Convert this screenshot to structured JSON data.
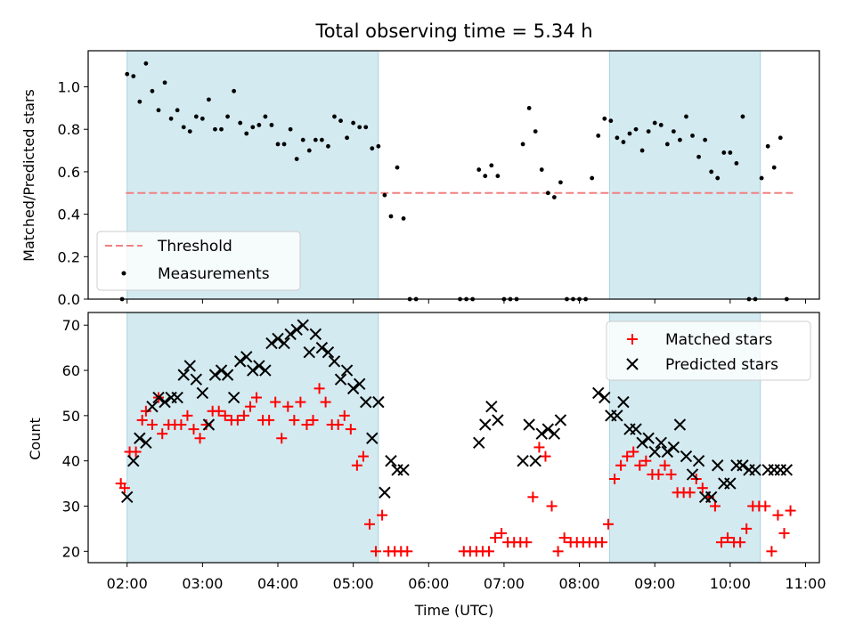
{
  "title": "Total observing time = 5.34 h",
  "colors": {
    "shade": "#d3eaf0",
    "threshold": "#f08080",
    "measurement": "#000000",
    "matched": "#ff0000",
    "predicted": "#000000"
  },
  "chart_data": [
    {
      "type": "scatter",
      "title": "Total observing time = 5.34 h",
      "xlabel": "",
      "ylabel": "Matched/Predicted stars",
      "xlim": [
        "01:29",
        "11:11"
      ],
      "ylim": [
        0,
        1.17
      ],
      "yticks": [
        0.0,
        0.2,
        0.4,
        0.6,
        0.8,
        1.0
      ],
      "ytick_labels": [
        "0.0",
        "0.2",
        "0.4",
        "0.6",
        "0.8",
        "1.0"
      ],
      "shaded_spans": [
        [
          "02:00",
          "05:20"
        ],
        [
          "08:24",
          "10:24"
        ]
      ],
      "legend_loc": "lower left",
      "threshold": {
        "name": "Threshold",
        "y": 0.5,
        "x": [
          "01:59",
          "10:50"
        ]
      },
      "series": [
        {
          "name": "Measurements",
          "x": [
            "01:56",
            "02:00",
            "02:05",
            "02:10",
            "02:15",
            "02:20",
            "02:25",
            "02:30",
            "02:35",
            "02:40",
            "02:45",
            "02:50",
            "02:55",
            "03:00",
            "03:05",
            "03:10",
            "03:15",
            "03:20",
            "03:25",
            "03:30",
            "03:35",
            "03:40",
            "03:45",
            "03:50",
            "03:55",
            "04:00",
            "04:05",
            "04:10",
            "04:15",
            "04:20",
            "04:25",
            "04:30",
            "04:35",
            "04:40",
            "04:45",
            "04:50",
            "04:55",
            "05:00",
            "05:05",
            "05:10",
            "05:15",
            "05:20",
            "05:25",
            "05:30",
            "05:35",
            "05:40",
            "05:45",
            "05:50",
            "06:25",
            "06:30",
            "06:35",
            "06:40",
            "06:45",
            "06:50",
            "06:55",
            "07:00",
            "07:05",
            "07:10",
            "07:15",
            "07:20",
            "07:25",
            "07:30",
            "07:35",
            "07:40",
            "07:45",
            "07:50",
            "07:55",
            "08:00",
            "08:05",
            "08:10",
            "08:15",
            "08:20",
            "08:25",
            "08:30",
            "08:35",
            "08:40",
            "08:45",
            "08:50",
            "08:55",
            "09:00",
            "09:05",
            "09:10",
            "09:15",
            "09:20",
            "09:25",
            "09:30",
            "09:35",
            "09:40",
            "09:45",
            "09:50",
            "09:55",
            "10:00",
            "10:05",
            "10:10",
            "10:15",
            "10:20",
            "10:25",
            "10:30",
            "10:35",
            "10:40",
            "10:45"
          ],
          "y": [
            0.0,
            1.06,
            1.05,
            0.93,
            1.11,
            0.98,
            0.89,
            1.02,
            0.85,
            0.89,
            0.81,
            0.79,
            0.86,
            0.85,
            0.94,
            0.8,
            0.8,
            0.86,
            0.98,
            0.83,
            0.78,
            0.81,
            0.82,
            0.86,
            0.82,
            0.73,
            0.73,
            0.8,
            0.66,
            0.75,
            0.7,
            0.75,
            0.75,
            0.72,
            0.86,
            0.84,
            0.76,
            0.83,
            0.81,
            0.81,
            0.71,
            0.72,
            0.49,
            0.39,
            0.62,
            0.38,
            0.0,
            0.0,
            0.0,
            0.0,
            0.0,
            0.61,
            0.58,
            0.63,
            0.58,
            0.0,
            0.0,
            0.0,
            0.73,
            0.9,
            0.79,
            0.61,
            0.5,
            0.48,
            0.55,
            0.0,
            0.0,
            0.0,
            0.0,
            0.57,
            0.77,
            0.85,
            0.84,
            0.76,
            0.74,
            0.78,
            0.8,
            0.7,
            0.79,
            0.83,
            0.82,
            0.73,
            0.79,
            0.75,
            0.86,
            0.77,
            0.67,
            0.75,
            0.6,
            0.57,
            0.69,
            0.69,
            0.64,
            0.86,
            0.0,
            0.0,
            0.57,
            0.72,
            0.62,
            0.76,
            0.0
          ]
        }
      ]
    },
    {
      "type": "scatter",
      "title": "",
      "xlabel": "Time (UTC)",
      "ylabel": "Count",
      "xlim": [
        "01:29",
        "11:11"
      ],
      "ylim": [
        17.5,
        72.8
      ],
      "xticks": [
        "02:00",
        "03:00",
        "04:00",
        "05:00",
        "06:00",
        "07:00",
        "08:00",
        "09:00",
        "10:00",
        "11:00"
      ],
      "yticks": [
        20,
        30,
        40,
        50,
        60,
        70
      ],
      "ytick_labels": [
        "20",
        "30",
        "40",
        "50",
        "60",
        "70"
      ],
      "shaded_spans": [
        [
          "02:00",
          "05:20"
        ],
        [
          "08:24",
          "10:24"
        ]
      ],
      "legend_loc": "upper right",
      "series": [
        {
          "name": "Matched stars",
          "x": [
            "01:55",
            "01:58",
            "02:02",
            "02:07",
            "02:12",
            "02:15",
            "02:20",
            "02:25",
            "02:28",
            "02:33",
            "02:38",
            "02:43",
            "02:48",
            "02:53",
            "02:58",
            "03:03",
            "03:08",
            "03:13",
            "03:18",
            "03:23",
            "03:28",
            "03:33",
            "03:38",
            "03:43",
            "03:48",
            "03:53",
            "03:58",
            "04:03",
            "04:08",
            "04:13",
            "04:18",
            "04:23",
            "04:28",
            "04:33",
            "04:38",
            "04:43",
            "04:48",
            "04:53",
            "04:58",
            "05:03",
            "05:08",
            "05:13",
            "05:18",
            "05:23",
            "05:28",
            "05:33",
            "05:38",
            "05:43",
            "06:28",
            "06:33",
            "06:38",
            "06:43",
            "06:48",
            "06:53",
            "06:58",
            "07:03",
            "07:08",
            "07:13",
            "07:18",
            "07:23",
            "07:28",
            "07:33",
            "07:38",
            "07:43",
            "07:48",
            "07:53",
            "07:58",
            "08:03",
            "08:08",
            "08:13",
            "08:18",
            "08:23",
            "08:28",
            "08:33",
            "08:38",
            "08:43",
            "08:48",
            "08:53",
            "08:58",
            "09:03",
            "09:08",
            "09:13",
            "09:18",
            "09:23",
            "09:28",
            "09:33",
            "09:38",
            "09:43",
            "09:48",
            "09:53",
            "09:58",
            "10:03",
            "10:08",
            "10:13",
            "10:18",
            "10:23",
            "10:28",
            "10:33",
            "10:38",
            "10:43"
          ],
          "y": [
            35,
            34,
            42,
            42,
            49,
            51,
            48,
            54,
            46,
            48,
            48,
            48,
            50,
            47,
            45,
            48,
            51,
            51,
            50,
            49,
            49,
            50,
            52,
            54,
            49,
            49,
            53,
            45,
            52,
            49,
            53,
            48,
            49,
            56,
            53,
            48,
            48,
            50,
            47,
            39,
            41,
            26,
            20,
            28,
            20,
            20,
            20,
            20,
            20,
            20,
            20,
            20,
            20,
            23,
            24,
            22,
            22,
            22,
            22,
            32,
            43,
            41,
            30,
            20,
            23,
            22,
            22,
            22,
            22,
            22,
            22,
            26,
            36,
            39,
            41,
            42,
            39,
            40,
            37,
            37,
            39,
            37,
            33,
            33,
            33,
            36,
            34,
            32,
            30,
            22,
            23,
            22,
            22,
            25,
            30,
            30,
            30,
            20,
            28,
            24
          ],
          "y2": [
            null,
            null,
            null,
            null,
            null,
            null,
            null,
            null,
            null,
            null,
            null,
            null,
            null,
            null,
            null,
            null,
            null,
            null,
            null,
            null,
            null,
            null,
            null,
            null,
            null,
            null,
            null,
            null,
            null,
            null,
            null,
            null,
            null,
            null,
            null,
            null,
            null,
            null,
            null,
            null,
            null,
            null,
            null,
            null,
            null,
            null,
            null,
            null,
            null,
            null,
            null,
            null,
            null,
            null,
            null,
            null,
            null,
            null,
            null,
            null,
            null,
            null,
            null,
            null,
            null,
            null,
            null,
            null,
            null,
            null,
            null,
            null,
            null,
            null,
            null,
            null,
            null,
            null,
            null,
            null,
            null,
            null,
            null,
            null,
            null,
            null,
            null,
            null,
            null,
            null,
            null,
            null,
            null,
            null,
            null,
            null,
            null,
            null,
            null,
            29
          ]
        },
        {
          "name": "Predicted stars",
          "x": [
            "02:00",
            "02:05",
            "02:10",
            "02:15",
            "02:20",
            "02:25",
            "02:30",
            "02:35",
            "02:40",
            "02:45",
            "02:50",
            "02:55",
            "03:00",
            "03:05",
            "03:10",
            "03:15",
            "03:20",
            "03:25",
            "03:30",
            "03:35",
            "03:40",
            "03:45",
            "03:50",
            "03:55",
            "04:00",
            "04:05",
            "04:10",
            "04:15",
            "04:20",
            "04:25",
            "04:30",
            "04:35",
            "04:40",
            "04:45",
            "04:50",
            "04:55",
            "05:00",
            "05:05",
            "05:10",
            "05:15",
            "05:20",
            "05:25",
            "05:30",
            "05:35",
            "05:40",
            "06:40",
            "06:45",
            "06:50",
            "06:55",
            "07:15",
            "07:20",
            "07:25",
            "07:30",
            "07:35",
            "07:40",
            "07:45",
            "08:15",
            "08:20",
            "08:25",
            "08:30",
            "08:35",
            "08:40",
            "08:45",
            "08:50",
            "08:55",
            "09:00",
            "09:05",
            "09:10",
            "09:15",
            "09:20",
            "09:25",
            "09:30",
            "09:35",
            "09:40",
            "09:45",
            "09:50",
            "09:55",
            "10:00",
            "10:05",
            "10:10",
            "10:15",
            "10:20",
            "10:30",
            "10:35",
            "10:40",
            "10:45"
          ],
          "y": [
            32,
            40,
            45,
            44,
            52,
            54,
            53,
            54,
            54,
            59,
            61,
            58,
            55,
            48,
            59,
            60,
            59,
            54,
            62,
            63,
            60,
            61,
            60,
            66,
            67,
            66,
            68,
            69,
            70,
            64,
            68,
            65,
            64,
            62,
            58,
            60,
            56,
            57,
            53,
            45,
            53,
            33,
            40,
            38,
            38,
            44,
            48,
            52,
            49,
            40,
            48,
            40,
            46,
            47,
            46,
            49,
            55,
            54,
            50,
            50,
            53,
            47,
            47,
            44,
            45,
            42,
            44,
            42,
            43,
            48,
            41,
            37,
            40,
            32,
            32,
            39,
            35,
            35,
            39,
            39,
            38,
            38,
            38,
            38,
            38,
            38
          ],
          "y_fix": null
        }
      ]
    }
  ]
}
